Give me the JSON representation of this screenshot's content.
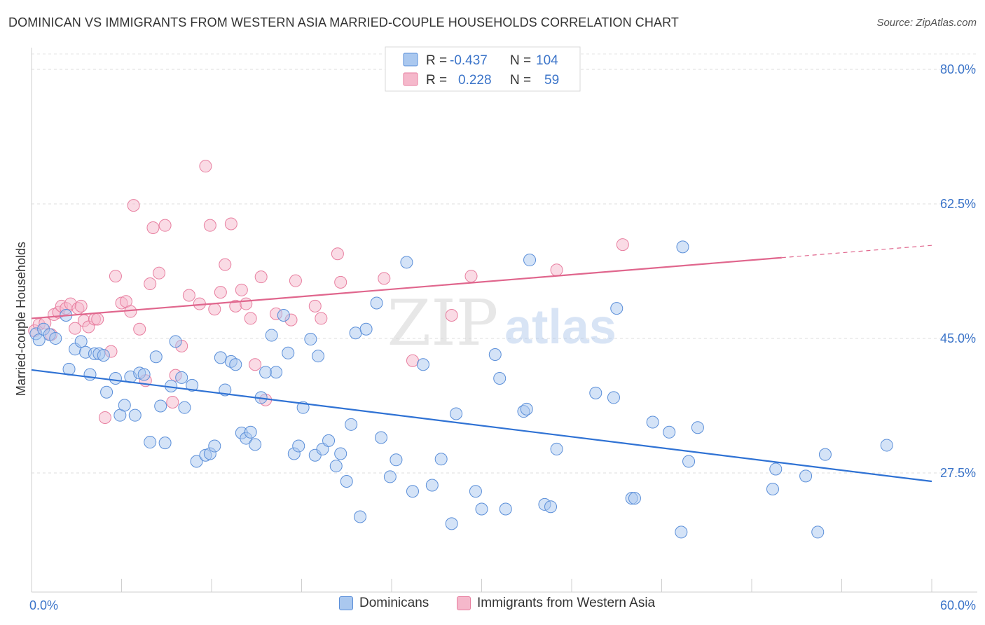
{
  "title": "DOMINICAN VS IMMIGRANTS FROM WESTERN ASIA MARRIED-COUPLE HOUSEHOLDS CORRELATION CHART",
  "source": "Source: ZipAtlas.com",
  "watermark": {
    "zip": "ZIP",
    "atlas": "atlas"
  },
  "colors": {
    "blue": "#5b8fd9",
    "blue_fill": "#aac8ef",
    "blue_line": "#2f72d4",
    "pink": "#e87fa0",
    "pink_fill": "#f5b8cb",
    "pink_line": "#e0668d",
    "axis_label": "#3b74c9"
  },
  "chart_data": {
    "type": "scatter",
    "xlabel": "",
    "ylabel": "Married-couple Households",
    "xlim": [
      0,
      60
    ],
    "ylim": [
      12,
      82
    ],
    "x_tick_labels": [
      "0.0%",
      "60.0%"
    ],
    "y_ticks": [
      27.5,
      45.0,
      62.5,
      80.0
    ],
    "y_tick_labels": [
      "27.5%",
      "45.0%",
      "62.5%",
      "80.0%"
    ],
    "grid": "horizontal dashed",
    "legend": {
      "placement": "top-center",
      "rows": [
        {
          "r_label": "R =",
          "r_value": "-0.437",
          "n_label": "N =",
          "n_value": "104"
        },
        {
          "r_label": "R =",
          "r_value": "0.228",
          "n_label": "N =",
          "n_value": "59"
        }
      ]
    },
    "series": [
      {
        "name": "Dominicans",
        "trend": {
          "x": [
            0,
            60
          ],
          "y": [
            40.9,
            26.4
          ]
        },
        "points": [
          [
            0.3,
            45.6
          ],
          [
            0.5,
            44.8
          ],
          [
            0.8,
            46.2
          ],
          [
            1.2,
            45.5
          ],
          [
            1.6,
            45.0
          ],
          [
            2.3,
            48.0
          ],
          [
            2.5,
            41.0
          ],
          [
            2.9,
            43.6
          ],
          [
            3.3,
            44.6
          ],
          [
            3.6,
            43.2
          ],
          [
            3.9,
            40.3
          ],
          [
            4.2,
            43.0
          ],
          [
            4.5,
            43.0
          ],
          [
            4.8,
            42.8
          ],
          [
            5.0,
            38.0
          ],
          [
            5.6,
            39.8
          ],
          [
            5.9,
            35.0
          ],
          [
            6.2,
            36.3
          ],
          [
            6.6,
            40.0
          ],
          [
            6.9,
            35.0
          ],
          [
            7.2,
            40.5
          ],
          [
            7.5,
            40.3
          ],
          [
            7.9,
            31.5
          ],
          [
            8.3,
            42.6
          ],
          [
            8.6,
            36.2
          ],
          [
            8.9,
            31.4
          ],
          [
            9.3,
            38.8
          ],
          [
            9.6,
            44.6
          ],
          [
            10.0,
            39.9
          ],
          [
            10.2,
            36.0
          ],
          [
            10.7,
            38.9
          ],
          [
            11.0,
            29.0
          ],
          [
            11.6,
            29.8
          ],
          [
            11.9,
            30.0
          ],
          [
            12.2,
            31.0
          ],
          [
            12.6,
            42.5
          ],
          [
            12.9,
            38.3
          ],
          [
            13.3,
            42.0
          ],
          [
            13.6,
            41.6
          ],
          [
            14.0,
            32.7
          ],
          [
            14.3,
            32.0
          ],
          [
            14.6,
            32.8
          ],
          [
            14.9,
            31.2
          ],
          [
            15.3,
            37.3
          ],
          [
            15.6,
            40.6
          ],
          [
            16.0,
            45.4
          ],
          [
            16.3,
            40.6
          ],
          [
            16.8,
            48.0
          ],
          [
            17.1,
            43.1
          ],
          [
            17.5,
            30.0
          ],
          [
            17.8,
            31.0
          ],
          [
            18.1,
            36.0
          ],
          [
            18.6,
            44.9
          ],
          [
            18.9,
            29.8
          ],
          [
            19.1,
            42.7
          ],
          [
            19.4,
            30.6
          ],
          [
            19.8,
            31.7
          ],
          [
            20.3,
            28.4
          ],
          [
            20.6,
            30.0
          ],
          [
            21.0,
            26.4
          ],
          [
            21.3,
            33.8
          ],
          [
            21.6,
            45.7
          ],
          [
            21.9,
            21.8
          ],
          [
            22.3,
            46.2
          ],
          [
            23.0,
            49.6
          ],
          [
            23.3,
            32.1
          ],
          [
            23.9,
            27.0
          ],
          [
            24.3,
            29.2
          ],
          [
            25.0,
            54.9
          ],
          [
            25.4,
            25.1
          ],
          [
            26.1,
            41.6
          ],
          [
            26.7,
            25.9
          ],
          [
            27.3,
            29.3
          ],
          [
            28.0,
            20.9
          ],
          [
            28.3,
            35.2
          ],
          [
            29.6,
            25.1
          ],
          [
            30.0,
            22.8
          ],
          [
            30.9,
            42.9
          ],
          [
            31.2,
            39.8
          ],
          [
            31.6,
            22.8
          ],
          [
            32.8,
            35.5
          ],
          [
            33.0,
            35.8
          ],
          [
            33.2,
            55.2
          ],
          [
            34.2,
            23.4
          ],
          [
            34.6,
            23.1
          ],
          [
            35.0,
            30.6
          ],
          [
            37.6,
            37.9
          ],
          [
            38.8,
            37.3
          ],
          [
            39.0,
            48.9
          ],
          [
            40.0,
            24.2
          ],
          [
            40.2,
            24.2
          ],
          [
            41.4,
            34.1
          ],
          [
            42.5,
            32.8
          ],
          [
            43.3,
            19.8
          ],
          [
            43.4,
            56.9
          ],
          [
            43.8,
            29.0
          ],
          [
            44.4,
            33.4
          ],
          [
            49.4,
            25.4
          ],
          [
            49.6,
            28.0
          ],
          [
            51.6,
            27.1
          ],
          [
            52.4,
            19.8
          ],
          [
            52.9,
            29.9
          ],
          [
            57.0,
            31.1
          ]
        ]
      },
      {
        "name": "Immigrants from Western Asia",
        "trend": {
          "x": [
            0,
            50
          ],
          "y": [
            47.6,
            55.5
          ]
        },
        "trend_dashed": {
          "x": [
            50,
            60
          ],
          "y": [
            55.5,
            57.1
          ]
        },
        "points": [
          [
            0.2,
            46.0
          ],
          [
            0.5,
            46.8
          ],
          [
            0.9,
            47.0
          ],
          [
            1.3,
            45.5
          ],
          [
            1.5,
            48.1
          ],
          [
            1.8,
            48.4
          ],
          [
            2.0,
            49.2
          ],
          [
            2.3,
            48.9
          ],
          [
            2.6,
            49.5
          ],
          [
            2.9,
            46.3
          ],
          [
            3.1,
            48.9
          ],
          [
            3.3,
            49.2
          ],
          [
            3.5,
            47.3
          ],
          [
            3.8,
            46.5
          ],
          [
            4.2,
            47.5
          ],
          [
            4.4,
            47.5
          ],
          [
            4.9,
            34.7
          ],
          [
            5.3,
            43.3
          ],
          [
            5.6,
            53.1
          ],
          [
            6.0,
            49.6
          ],
          [
            6.3,
            49.8
          ],
          [
            6.6,
            48.5
          ],
          [
            6.8,
            62.3
          ],
          [
            7.2,
            46.2
          ],
          [
            7.6,
            39.5
          ],
          [
            7.9,
            52.1
          ],
          [
            8.1,
            59.4
          ],
          [
            8.5,
            53.5
          ],
          [
            8.9,
            59.7
          ],
          [
            9.4,
            36.7
          ],
          [
            9.6,
            40.2
          ],
          [
            10.0,
            44.0
          ],
          [
            10.5,
            50.6
          ],
          [
            11.2,
            49.5
          ],
          [
            11.6,
            67.4
          ],
          [
            11.9,
            59.7
          ],
          [
            12.2,
            48.8
          ],
          [
            12.6,
            51.0
          ],
          [
            12.9,
            54.6
          ],
          [
            13.3,
            59.9
          ],
          [
            13.6,
            49.2
          ],
          [
            14.0,
            51.3
          ],
          [
            14.3,
            49.5
          ],
          [
            14.6,
            47.6
          ],
          [
            14.9,
            41.6
          ],
          [
            15.3,
            53.0
          ],
          [
            15.6,
            37.0
          ],
          [
            16.3,
            48.2
          ],
          [
            17.3,
            47.4
          ],
          [
            17.6,
            52.5
          ],
          [
            18.9,
            49.2
          ],
          [
            19.3,
            47.6
          ],
          [
            20.4,
            56.0
          ],
          [
            20.6,
            52.3
          ],
          [
            23.5,
            52.8
          ],
          [
            25.4,
            42.1
          ],
          [
            28.0,
            48.0
          ],
          [
            29.3,
            53.1
          ],
          [
            35.0,
            53.9
          ],
          [
            39.4,
            57.2
          ]
        ]
      }
    ]
  },
  "bottom_legend": [
    {
      "label": "Dominicans"
    },
    {
      "label": "Immigrants from Western Asia"
    }
  ]
}
